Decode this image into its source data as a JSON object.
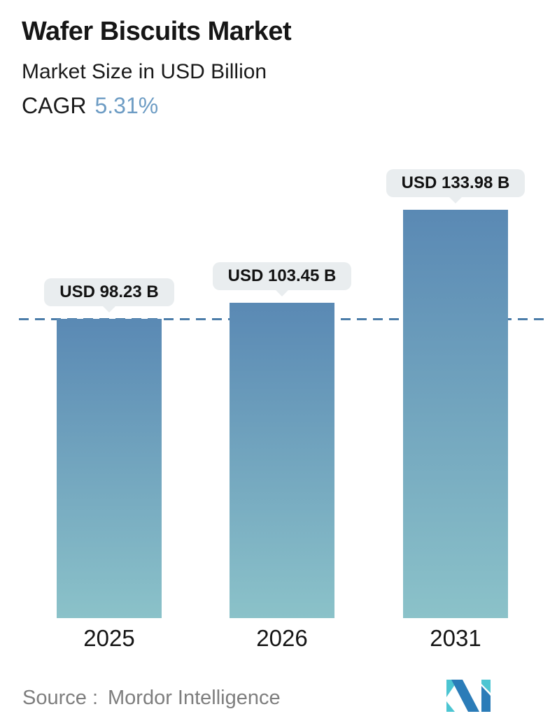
{
  "header": {
    "title": "Wafer Biscuits Market",
    "subtitle": "Market Size in USD Billion",
    "cagr_label": "CAGR",
    "cagr_value": "5.31%"
  },
  "chart_data": {
    "type": "bar",
    "title": "Wafer Biscuits Market",
    "subtitle": "Market Size in USD Billion",
    "cagr": "5.31%",
    "categories": [
      "2025",
      "2026",
      "2031"
    ],
    "values": [
      98.23,
      103.45,
      133.98
    ],
    "value_labels": [
      "USD 98.23 B",
      "USD 103.45 B",
      "USD 133.98 B"
    ],
    "unit": "USD Billion",
    "ylim": [
      0,
      140
    ],
    "grid": false,
    "legend": false,
    "reference_line_value": 98.23,
    "reference_line_style": "dashed",
    "bar_color_top": "#5a89b4",
    "bar_color_bottom": "#8bc2c9"
  },
  "footer": {
    "source_label": "Source :",
    "source_value": "Mordor Intelligence"
  },
  "icons": {
    "logo": "mordor-intelligence-logo"
  },
  "colors": {
    "accent_blue": "#6d9cc4",
    "dashed_line": "#4c7da9",
    "pill_bg": "#e9edef",
    "text_dark": "#161616",
    "source_gray": "#7e7e7e",
    "logo_teal": "#4cc5d2",
    "logo_blue": "#2b7cb8",
    "bar_top": "#5a89b4",
    "bar_bottom": "#8bc2c9"
  }
}
